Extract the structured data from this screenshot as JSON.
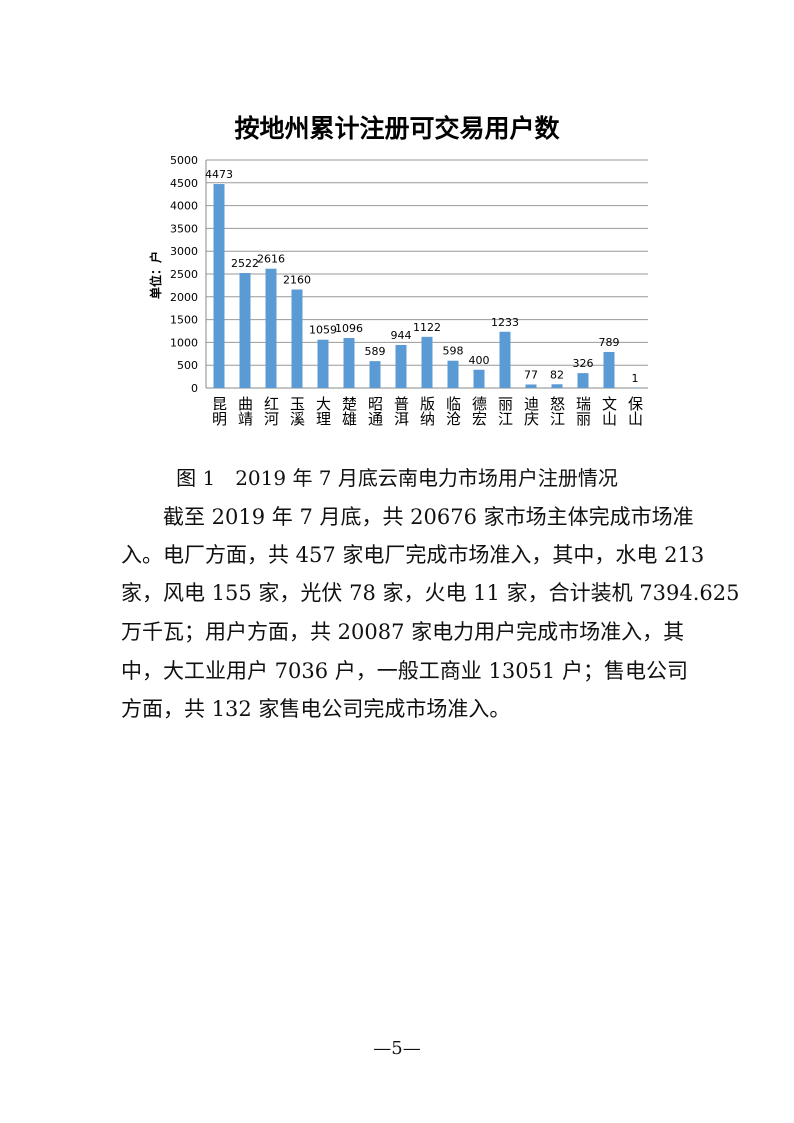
{
  "chart_data": {
    "type": "bar",
    "title": "按地州累计注册可交易用户数",
    "ylabel": "单位：户",
    "xlabel": "",
    "categories": [
      "昆明",
      "曲靖",
      "红河",
      "玉溪",
      "大理",
      "楚雄",
      "昭通",
      "普洱",
      "版纳",
      "临沧",
      "德宏",
      "丽江",
      "迪庆",
      "怒江",
      "瑞丽",
      "文山",
      "保山"
    ],
    "values": [
      4473,
      2522,
      2616,
      2160,
      1059,
      1096,
      589,
      944,
      1122,
      598,
      400,
      1233,
      77,
      82,
      326,
      789,
      1
    ],
    "ylim": [
      0,
      5000
    ],
    "yticks": [
      0,
      500,
      1000,
      1500,
      2000,
      2500,
      3000,
      3500,
      4000,
      4500,
      5000
    ],
    "grid": true,
    "bar_color": "#5b9bd5",
    "data_labels": true
  },
  "caption": "图 1　2019 年 7 月底云南电力市场用户注册情况",
  "paragraph_lines": [
    "截至 2019 年 7 月底，共 20676 家市场主体完成市场准",
    "入。电厂方面，共 457 家电厂完成市场准入，其中，水电 213",
    "家，风电 155 家，光伏 78 家，火电 11 家，合计装机 7394.625",
    "万千瓦；用户方面，共 20087 家电力用户完成市场准入，其",
    "中，大工业用户 7036 户，一般工商业 13051 户；售电公司",
    "方面，共 132 家售电公司完成市场准入。"
  ],
  "page_number": "—5—"
}
